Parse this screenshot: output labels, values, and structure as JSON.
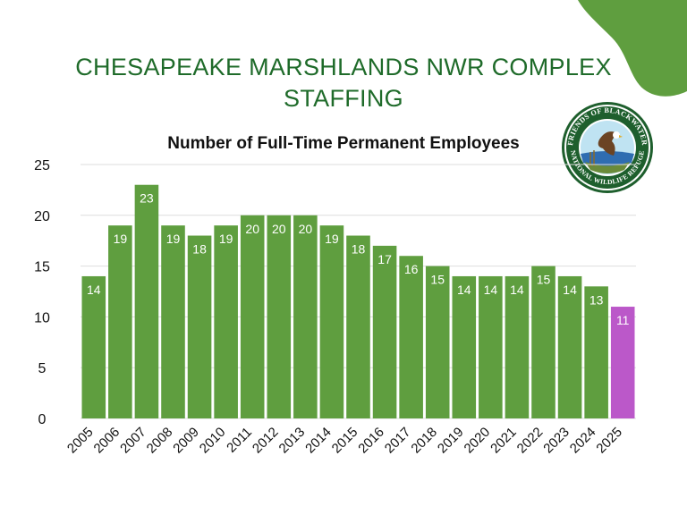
{
  "page": {
    "title_line1": "CHESAPEAKE MARSHLANDS NWR COMPLEX",
    "title_line2": "STAFFING",
    "logo_text": "FRIENDS OF BLACKWATER NATIONAL WILDLIFE REFUGE"
  },
  "colors": {
    "title": "#1f6b2a",
    "bar": "#5f9e3f",
    "highlight_bar": "#bb58c9",
    "corner_blob": "#5f9e3f",
    "grid": "#dddddd"
  },
  "chart_data": {
    "type": "bar",
    "title": "Number of Full-Time Permanent Employees",
    "xlabel": "",
    "ylabel": "",
    "categories": [
      "2005",
      "2006",
      "2007",
      "2008",
      "2009",
      "2010",
      "2011",
      "2012",
      "2013",
      "2014",
      "2015",
      "2016",
      "2017",
      "2018",
      "2019",
      "2020",
      "2021",
      "2022",
      "2023",
      "2024",
      "2025"
    ],
    "values": [
      14,
      19,
      23,
      19,
      18,
      19,
      20,
      20,
      20,
      19,
      18,
      17,
      16,
      15,
      14,
      14,
      14,
      15,
      14,
      13,
      11
    ],
    "highlight": [
      "2025"
    ],
    "ylim": [
      0,
      25
    ],
    "yticks": [
      0,
      5,
      10,
      15,
      20,
      25
    ],
    "grid": true,
    "data_labels": true
  }
}
